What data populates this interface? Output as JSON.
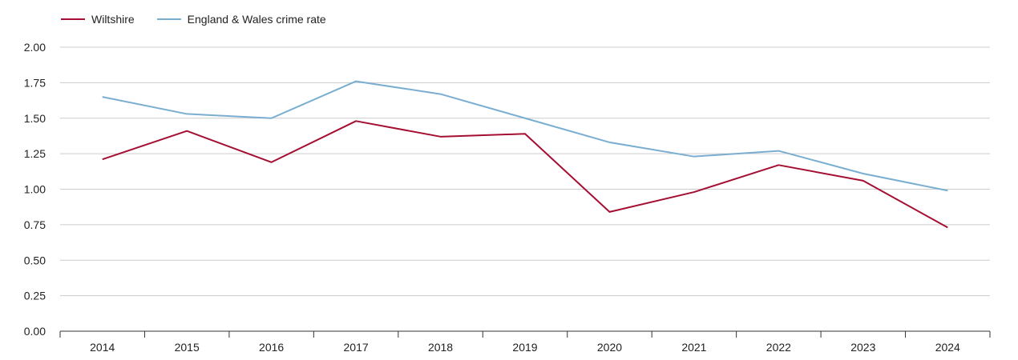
{
  "chart_data": {
    "type": "line",
    "title": "",
    "xlabel": "",
    "ylabel": "",
    "categories": [
      "2014",
      "2015",
      "2016",
      "2017",
      "2018",
      "2019",
      "2020",
      "2021",
      "2022",
      "2023",
      "2024"
    ],
    "ylim": [
      0,
      2
    ],
    "yticks": [
      "0.00",
      "0.25",
      "0.50",
      "0.75",
      "1.00",
      "1.25",
      "1.50",
      "1.75",
      "2.00"
    ],
    "grid": true,
    "legend_position": "top-left",
    "series": [
      {
        "name": "Wiltshire",
        "color": "#a50f33",
        "values": [
          1.21,
          1.41,
          1.19,
          1.48,
          1.37,
          1.39,
          0.84,
          0.98,
          1.17,
          1.06,
          0.73
        ]
      },
      {
        "name": "England & Wales crime rate",
        "color": "#7aaed1",
        "values": [
          1.65,
          1.53,
          1.5,
          1.76,
          1.67,
          1.5,
          1.33,
          1.23,
          1.27,
          1.11,
          0.99
        ]
      }
    ]
  }
}
